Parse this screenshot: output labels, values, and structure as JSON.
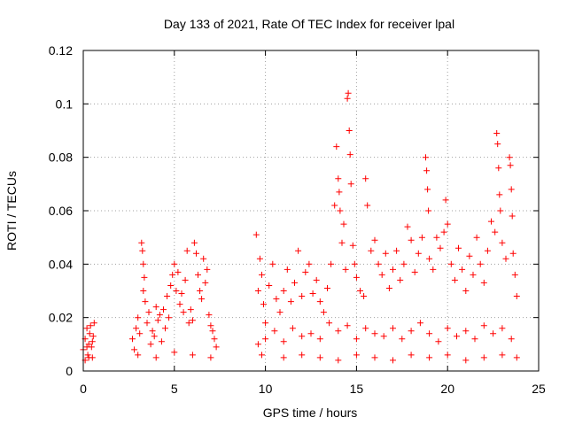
{
  "chart_data": {
    "type": "scatter",
    "title": "Day 133 of 2021, Rate Of TEC Index for receiver lpal",
    "xlabel": "GPS time / hours",
    "ylabel": "ROTI / TECUs",
    "xlim": [
      0,
      25
    ],
    "ylim": [
      0,
      0.12
    ],
    "xticks": [
      0,
      5,
      10,
      15,
      20,
      25
    ],
    "xtick_labels": [
      "0",
      "5",
      "10",
      "15",
      "20",
      "25"
    ],
    "yticks": [
      0,
      0.02,
      0.04,
      0.06,
      0.08,
      0.1,
      0.12
    ],
    "ytick_labels": [
      "0",
      "0.02",
      "0.04",
      "0.06",
      "0.08",
      "0.1",
      "0.12"
    ],
    "grid": true,
    "marker": "+",
    "color": "#ff0000",
    "series": [
      {
        "points": [
          [
            0.0,
            0.008
          ],
          [
            0.1,
            0.012
          ],
          [
            0.2,
            0.016
          ],
          [
            0.25,
            0.006
          ],
          [
            0.3,
            0.01
          ],
          [
            0.35,
            0.014
          ],
          [
            0.4,
            0.017
          ],
          [
            0.45,
            0.009
          ],
          [
            0.5,
            0.005
          ],
          [
            0.55,
            0.013
          ],
          [
            0.6,
            0.018
          ],
          [
            0.1,
            0.004
          ],
          [
            0.2,
            0.009
          ],
          [
            0.3,
            0.005
          ],
          [
            0.5,
            0.011
          ],
          [
            2.7,
            0.012
          ],
          [
            2.8,
            0.008
          ],
          [
            2.9,
            0.016
          ],
          [
            3.0,
            0.02
          ],
          [
            3.1,
            0.014
          ],
          [
            3.2,
            0.048
          ],
          [
            3.25,
            0.045
          ],
          [
            3.3,
            0.04
          ],
          [
            3.3,
            0.03
          ],
          [
            3.35,
            0.035
          ],
          [
            3.4,
            0.026
          ],
          [
            3.5,
            0.018
          ],
          [
            3.6,
            0.022
          ],
          [
            3.7,
            0.01
          ],
          [
            3.8,
            0.015
          ],
          [
            3.9,
            0.013
          ],
          [
            4.0,
            0.024
          ],
          [
            4.1,
            0.019
          ],
          [
            4.2,
            0.021
          ],
          [
            4.3,
            0.011
          ],
          [
            4.4,
            0.023
          ],
          [
            4.5,
            0.016
          ],
          [
            4.6,
            0.028
          ],
          [
            4.7,
            0.02
          ],
          [
            4.8,
            0.032
          ],
          [
            4.9,
            0.036
          ],
          [
            5.0,
            0.04
          ],
          [
            5.1,
            0.03
          ],
          [
            5.2,
            0.037
          ],
          [
            5.3,
            0.025
          ],
          [
            5.4,
            0.029
          ],
          [
            5.5,
            0.022
          ],
          [
            5.6,
            0.034
          ],
          [
            5.7,
            0.045
          ],
          [
            5.8,
            0.018
          ],
          [
            5.9,
            0.023
          ],
          [
            6.0,
            0.019
          ],
          [
            6.1,
            0.048
          ],
          [
            6.2,
            0.044
          ],
          [
            6.3,
            0.036
          ],
          [
            6.4,
            0.03
          ],
          [
            6.5,
            0.027
          ],
          [
            6.6,
            0.042
          ],
          [
            6.7,
            0.033
          ],
          [
            6.8,
            0.038
          ],
          [
            6.9,
            0.021
          ],
          [
            7.0,
            0.017
          ],
          [
            7.1,
            0.015
          ],
          [
            7.2,
            0.012
          ],
          [
            7.3,
            0.009
          ],
          [
            3.0,
            0.006
          ],
          [
            4.0,
            0.005
          ],
          [
            5.0,
            0.007
          ],
          [
            6.0,
            0.006
          ],
          [
            7.0,
            0.005
          ],
          [
            9.5,
            0.051
          ],
          [
            9.6,
            0.03
          ],
          [
            9.7,
            0.042
          ],
          [
            9.8,
            0.036
          ],
          [
            9.9,
            0.025
          ],
          [
            10.0,
            0.018
          ],
          [
            10.2,
            0.032
          ],
          [
            10.4,
            0.04
          ],
          [
            10.6,
            0.027
          ],
          [
            10.8,
            0.022
          ],
          [
            11.0,
            0.03
          ],
          [
            11.2,
            0.038
          ],
          [
            11.4,
            0.026
          ],
          [
            11.6,
            0.033
          ],
          [
            11.8,
            0.045
          ],
          [
            12.0,
            0.028
          ],
          [
            12.2,
            0.037
          ],
          [
            12.4,
            0.04
          ],
          [
            12.6,
            0.029
          ],
          [
            12.8,
            0.034
          ],
          [
            13.0,
            0.026
          ],
          [
            13.2,
            0.022
          ],
          [
            13.4,
            0.031
          ],
          [
            13.6,
            0.04
          ],
          [
            13.8,
            0.062
          ],
          [
            13.9,
            0.084
          ],
          [
            14.0,
            0.072
          ],
          [
            14.05,
            0.067
          ],
          [
            14.1,
            0.06
          ],
          [
            14.2,
            0.048
          ],
          [
            14.3,
            0.055
          ],
          [
            14.4,
            0.038
          ],
          [
            14.5,
            0.102
          ],
          [
            14.55,
            0.104
          ],
          [
            14.6,
            0.09
          ],
          [
            14.65,
            0.081
          ],
          [
            14.7,
            0.07
          ],
          [
            14.8,
            0.047
          ],
          [
            14.9,
            0.04
          ],
          [
            15.0,
            0.035
          ],
          [
            15.2,
            0.03
          ],
          [
            15.4,
            0.028
          ],
          [
            15.5,
            0.072
          ],
          [
            15.6,
            0.062
          ],
          [
            15.8,
            0.045
          ],
          [
            16.0,
            0.049
          ],
          [
            16.2,
            0.04
          ],
          [
            16.4,
            0.036
          ],
          [
            16.6,
            0.044
          ],
          [
            16.8,
            0.031
          ],
          [
            17.0,
            0.038
          ],
          [
            17.2,
            0.045
          ],
          [
            17.4,
            0.034
          ],
          [
            17.6,
            0.04
          ],
          [
            17.8,
            0.054
          ],
          [
            18.0,
            0.049
          ],
          [
            18.2,
            0.037
          ],
          [
            18.4,
            0.044
          ],
          [
            18.6,
            0.05
          ],
          [
            18.8,
            0.08
          ],
          [
            18.85,
            0.075
          ],
          [
            18.9,
            0.068
          ],
          [
            18.95,
            0.06
          ],
          [
            19.0,
            0.042
          ],
          [
            19.2,
            0.038
          ],
          [
            19.4,
            0.05
          ],
          [
            19.6,
            0.046
          ],
          [
            19.8,
            0.052
          ],
          [
            19.9,
            0.064
          ],
          [
            20.0,
            0.055
          ],
          [
            20.2,
            0.04
          ],
          [
            20.4,
            0.034
          ],
          [
            20.6,
            0.046
          ],
          [
            20.8,
            0.038
          ],
          [
            21.0,
            0.03
          ],
          [
            21.2,
            0.043
          ],
          [
            21.4,
            0.036
          ],
          [
            21.6,
            0.05
          ],
          [
            21.8,
            0.04
          ],
          [
            22.0,
            0.033
          ],
          [
            22.2,
            0.045
          ],
          [
            22.4,
            0.056
          ],
          [
            22.6,
            0.052
          ],
          [
            22.7,
            0.089
          ],
          [
            22.75,
            0.085
          ],
          [
            22.8,
            0.076
          ],
          [
            22.85,
            0.066
          ],
          [
            22.9,
            0.06
          ],
          [
            23.0,
            0.048
          ],
          [
            23.2,
            0.042
          ],
          [
            23.4,
            0.08
          ],
          [
            23.45,
            0.077
          ],
          [
            23.5,
            0.068
          ],
          [
            23.55,
            0.058
          ],
          [
            23.6,
            0.044
          ],
          [
            23.7,
            0.036
          ],
          [
            23.8,
            0.028
          ],
          [
            9.6,
            0.01
          ],
          [
            10.0,
            0.012
          ],
          [
            10.5,
            0.015
          ],
          [
            11.0,
            0.011
          ],
          [
            11.5,
            0.016
          ],
          [
            12.0,
            0.013
          ],
          [
            12.5,
            0.014
          ],
          [
            13.0,
            0.012
          ],
          [
            13.5,
            0.018
          ],
          [
            14.0,
            0.015
          ],
          [
            14.5,
            0.017
          ],
          [
            15.0,
            0.012
          ],
          [
            15.5,
            0.016
          ],
          [
            16.0,
            0.014
          ],
          [
            16.5,
            0.013
          ],
          [
            17.0,
            0.016
          ],
          [
            17.5,
            0.012
          ],
          [
            18.0,
            0.015
          ],
          [
            18.5,
            0.018
          ],
          [
            19.0,
            0.014
          ],
          [
            19.5,
            0.011
          ],
          [
            20.0,
            0.016
          ],
          [
            20.5,
            0.013
          ],
          [
            21.0,
            0.015
          ],
          [
            21.5,
            0.012
          ],
          [
            22.0,
            0.017
          ],
          [
            22.5,
            0.014
          ],
          [
            23.0,
            0.016
          ],
          [
            23.5,
            0.012
          ],
          [
            9.8,
            0.006
          ],
          [
            11.0,
            0.005
          ],
          [
            12.0,
            0.006
          ],
          [
            13.0,
            0.005
          ],
          [
            14.0,
            0.004
          ],
          [
            15.0,
            0.006
          ],
          [
            16.0,
            0.005
          ],
          [
            17.0,
            0.004
          ],
          [
            18.0,
            0.006
          ],
          [
            19.0,
            0.005
          ],
          [
            20.0,
            0.006
          ],
          [
            21.0,
            0.004
          ],
          [
            22.0,
            0.005
          ],
          [
            23.0,
            0.006
          ],
          [
            23.8,
            0.005
          ]
        ]
      }
    ]
  }
}
